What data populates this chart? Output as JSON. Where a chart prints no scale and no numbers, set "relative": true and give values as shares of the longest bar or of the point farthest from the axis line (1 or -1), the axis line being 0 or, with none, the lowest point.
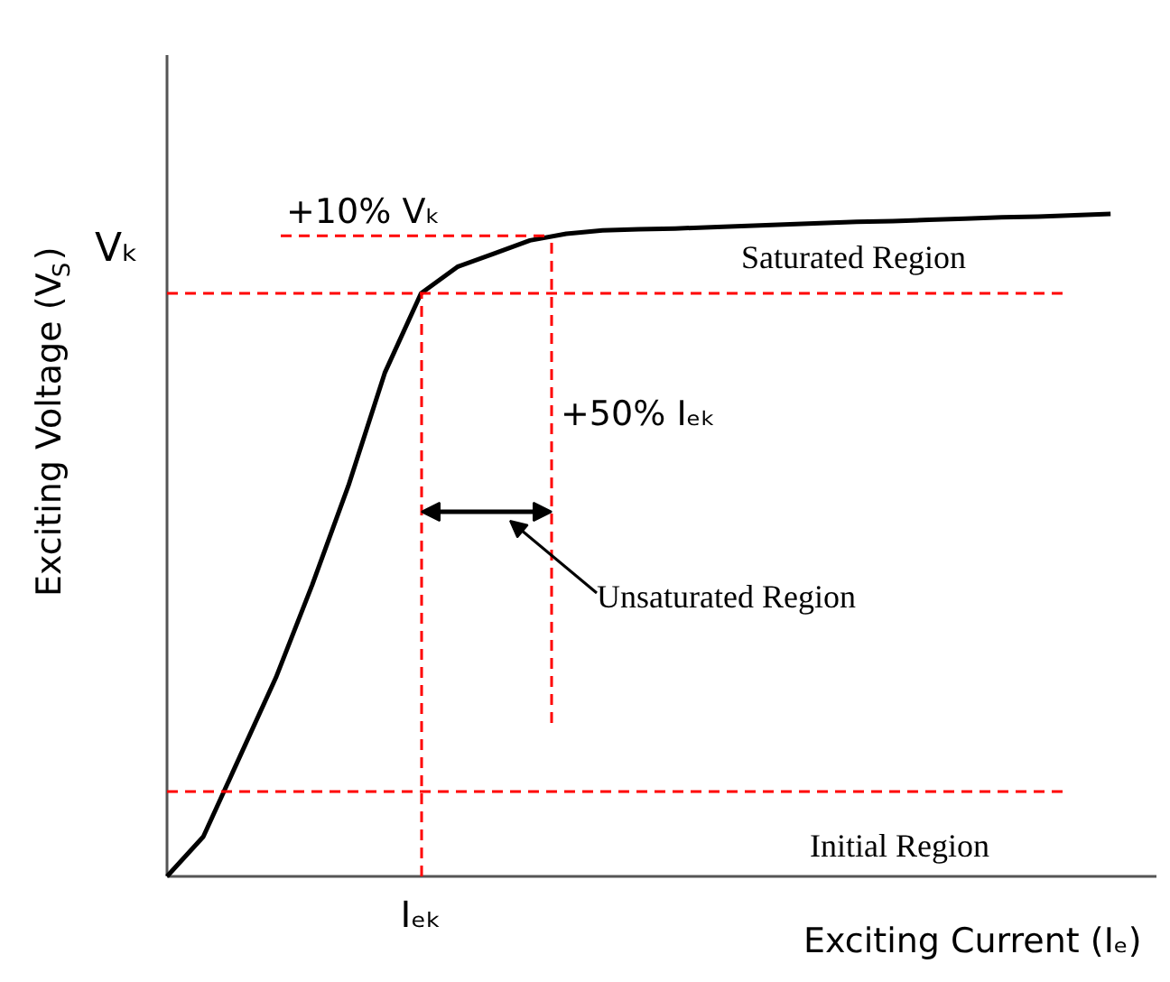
{
  "chart_data": {
    "type": "line",
    "relative": true,
    "categories": [
      null,
      null,
      null,
      null,
      null,
      null,
      null,
      null,
      null,
      null,
      null,
      null,
      null,
      null,
      null,
      null,
      null,
      null,
      null,
      null,
      null,
      null,
      null,
      null,
      null,
      null,
      null
    ],
    "series": [
      {
        "color": "#000000",
        "values": [
          0,
          0.06,
          0.18,
          0.3,
          0.44,
          0.59,
          0.76,
          0.88,
          0.92,
          0.94,
          0.96,
          0.97,
          0.975,
          0.977,
          0.978,
          0.98,
          0.982,
          0.984,
          0.986,
          0.988,
          0.989,
          0.991,
          0.993,
          0.995,
          0.996,
          0.998,
          1
        ]
      }
    ],
    "xlabel": "Exciting Current (Iₑ)",
    "ylabel": "Exciting Voltage (V$_{S}$)",
    "ref_lines": [
      {
        "axis": "y",
        "value": 0.88,
        "label": "Vₖ",
        "color": "#ff0000",
        "line_style": "dashed"
      },
      {
        "axis": "y",
        "value": 0.967,
        "label": "+10% Vₖ",
        "color": "#ff0000",
        "line_style": "dashed"
      },
      {
        "axis": "y",
        "value": 0.128,
        "label": "Initial Region",
        "color": "#ff0000",
        "line_style": "dashed"
      }
    ],
    "annotations": [
      "Saturated Region",
      "Unsaturated Region",
      "Iₑₖ",
      "+50% Iₑₖ"
    ]
  }
}
